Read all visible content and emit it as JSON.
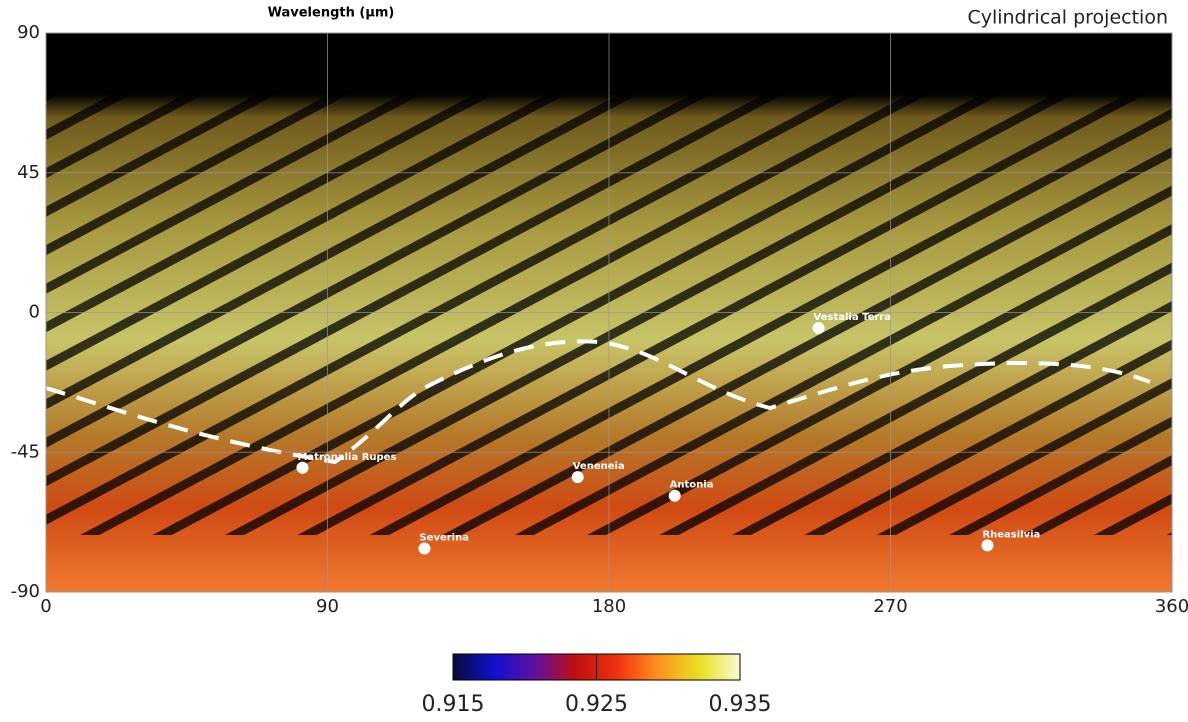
{
  "chart_data": {
    "type": "map",
    "title": "Wavelength (μm)",
    "projection_label": "Cylindrical projection",
    "xlim": [
      0,
      360
    ],
    "ylim": [
      -90,
      90
    ],
    "xticks": [
      0,
      90,
      180,
      270,
      360
    ],
    "yticks": [
      90,
      45,
      0,
      -45,
      -90
    ],
    "grid": true,
    "landmarks": [
      {
        "name": "Vestalia Terra",
        "lon": 247,
        "lat": -5
      },
      {
        "name": "Matronalia Rupes",
        "lon": 82,
        "lat": -50
      },
      {
        "name": "Veneneia",
        "lon": 170,
        "lat": -53
      },
      {
        "name": "Antonia",
        "lon": 201,
        "lat": -59
      },
      {
        "name": "Severina",
        "lon": 121,
        "lat": -76
      },
      {
        "name": "Rheasilvia",
        "lon": 301,
        "lat": -75
      }
    ],
    "colorbar": {
      "lim": [
        0.915,
        0.935
      ],
      "ticks": [
        0.915,
        0.925,
        0.935
      ],
      "colors": [
        "#0a0a3a",
        "#1010d0",
        "#6010a0",
        "#c01010",
        "#f03010",
        "#ff9020",
        "#e8e020",
        "#fafad0"
      ]
    }
  }
}
